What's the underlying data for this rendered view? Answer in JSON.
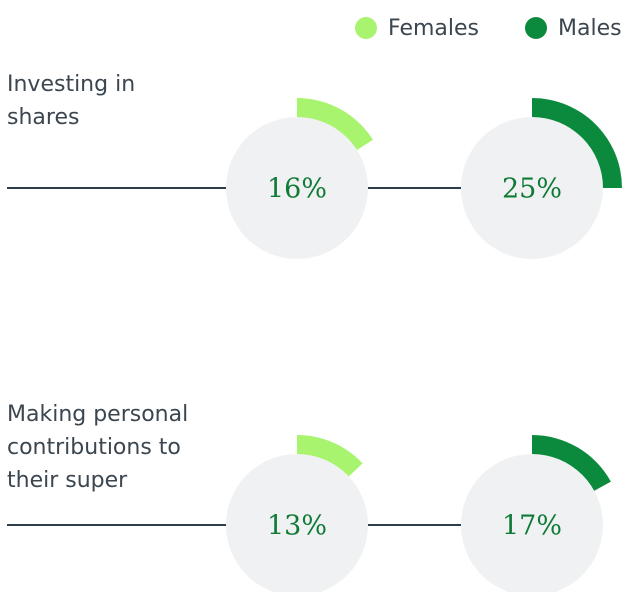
{
  "chart_data": {
    "type": "radial",
    "categories": [
      "Investing in shares",
      "Making personal contributions to their super"
    ],
    "series": [
      {
        "name": "Females",
        "color": "#a9f46f",
        "values": [
          16,
          13
        ],
        "value_labels": [
          "16%",
          "13%"
        ]
      },
      {
        "name": "Males",
        "color": "#0b8a3e",
        "values": [
          25,
          17
        ],
        "value_labels": [
          "25%",
          "17%"
        ]
      }
    ],
    "ylim": [
      0,
      100
    ]
  }
}
